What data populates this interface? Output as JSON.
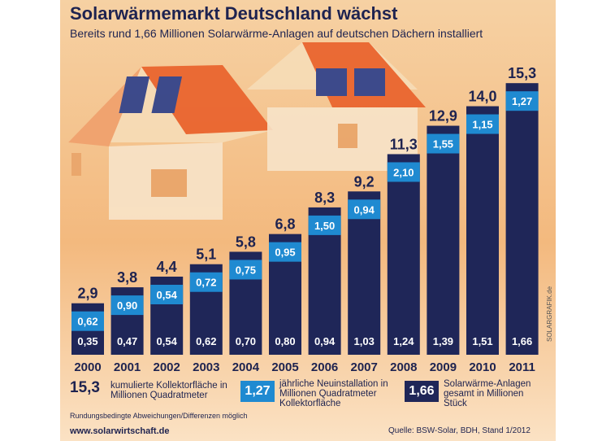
{
  "title": "Solarwärmemarkt Deutschland wächst",
  "subtitle": "Bereits rund 1,66 Millionen Solarwärme-Anlagen auf deutschen Dächern installiert",
  "colors": {
    "total_bar": "#1f2658",
    "new_bar": "#1f8ad1",
    "bg_top": "#f4c58f",
    "bg_bottom": "#fbe7cc",
    "text": "#1e2350"
  },
  "chart_data": {
    "type": "bar",
    "categories": [
      "2000",
      "2001",
      "2002",
      "2003",
      "2004",
      "2005",
      "2006",
      "2007",
      "2008",
      "2009",
      "2010",
      "2011"
    ],
    "totals": [
      "2,9",
      "3,8",
      "4,4",
      "5,1",
      "5,8",
      "6,8",
      "8,3",
      "9,2",
      "11,3",
      "12,9",
      "14,0",
      "15,3"
    ],
    "series": [
      {
        "values": [
          2.9,
          3.8,
          4.4,
          5.1,
          5.8,
          6.8,
          8.3,
          9.2,
          11.3,
          12.9,
          14.0,
          15.3
        ]
      },
      {
        "values": [
          0.62,
          0.9,
          0.54,
          0.72,
          0.75,
          0.95,
          1.5,
          0.94,
          2.1,
          1.55,
          1.15,
          1.27
        ],
        "labels": [
          "0,62",
          "0,90",
          "0,54",
          "0,72",
          "0,75",
          "0,95",
          "1,50",
          "0,94",
          "2,10",
          "1,55",
          "1,15",
          "1,27"
        ]
      },
      {
        "values": [
          0.35,
          0.47,
          0.54,
          0.62,
          0.7,
          0.8,
          0.94,
          1.03,
          1.24,
          1.39,
          1.51,
          1.66
        ],
        "labels": [
          "0,35",
          "0,47",
          "0,54",
          "0,62",
          "0,70",
          "0,80",
          "0,94",
          "1,03",
          "1,24",
          "1,39",
          "1,51",
          "1,66"
        ]
      }
    ],
    "ylim": [
      0,
      16.5
    ],
    "grid": false
  },
  "legend": {
    "item1_value": "15,3",
    "item1_text": "kumulierte Kollektorfläche in Millionen Quadratmeter",
    "item2_value": "1,27",
    "item2_text": "jährliche Neuinstallation in Millionen Quadratmeter Kollektorfläche",
    "item3_value": "1,66",
    "item3_text": "Solarwärme-Anlagen gesamt in Millionen Stück"
  },
  "note": "Rundungsbedingte Abweichungen/Differenzen möglich",
  "footer_left": "www.solarwirtschaft.de",
  "footer_right": "Quelle: BSW-Solar, BDH, Stand 1/2012",
  "credit": "SOLARGRAFIK.de"
}
